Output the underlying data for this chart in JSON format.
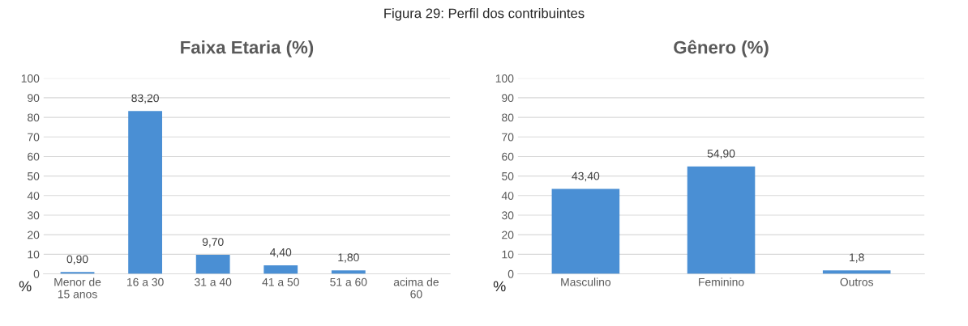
{
  "chart_data": [
    {
      "type": "bar",
      "title": "Faixa Etaria (%)",
      "ylabel": "%",
      "annotations": [
        "Figura 29: Perfil dos contribuintes"
      ],
      "categories": [
        "Menor de\n15 anos",
        "16 a 30",
        "31 a 40",
        "41 a 50",
        "51 a 60",
        "acima de\n60"
      ],
      "values": [
        0.9,
        83.2,
        9.7,
        4.4,
        1.8,
        null
      ],
      "value_labels": [
        "0,90",
        "83,20",
        "9,70",
        "4,40",
        "1,80",
        null
      ],
      "color": "#4a8fd4",
      "ylim": [
        0,
        100
      ],
      "yticks": [
        0,
        10,
        20,
        30,
        40,
        50,
        60,
        70,
        80,
        90,
        100
      ],
      "grid": "y",
      "legend": false
    },
    {
      "type": "bar",
      "title": "Gênero (%)",
      "ylabel": "%",
      "categories": [
        "Masculino",
        "Feminino",
        "Outros"
      ],
      "values": [
        43.4,
        54.9,
        1.8
      ],
      "value_labels": [
        "43,40",
        "54,90",
        "1,8"
      ],
      "color": "#4a8fd4",
      "ylim": [
        0,
        100
      ],
      "yticks": [
        0,
        10,
        20,
        30,
        40,
        50,
        60,
        70,
        80,
        90,
        100
      ],
      "grid": "y",
      "legend": false
    }
  ]
}
